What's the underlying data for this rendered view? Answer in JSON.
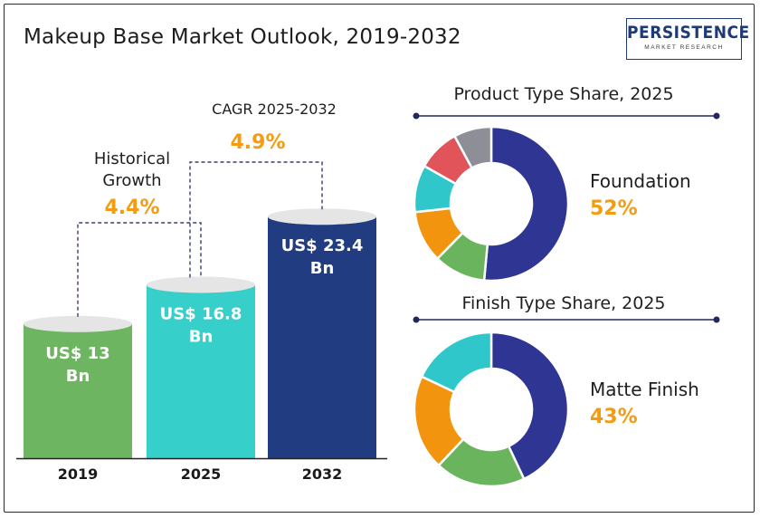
{
  "header": {
    "title": "Makeup Base Market Outlook, 2019-2032",
    "logo_text": "PERSISTENCE",
    "logo_subtext": "MARKET RESEARCH"
  },
  "colors": {
    "bar_2019": "#6db560",
    "bar_2025": "#36cfc9",
    "bar_2032": "#213c80",
    "accent_orange": "#f39c12",
    "donut_navy": "#2f3593",
    "donut_green": "#6bb45e",
    "donut_orange": "#f3940e",
    "donut_teal": "#2fc7c9",
    "donut_red": "#e0545a",
    "donut_gray": "#8e8e96"
  },
  "chart_data": [
    {
      "type": "bar",
      "categories": [
        "2019",
        "2025",
        "2032"
      ],
      "values": [
        13,
        16.8,
        23.4
      ],
      "data_labels": [
        "US$ 13 Bn",
        "US$ 16.8 Bn",
        "US$ 23.4 Bn"
      ],
      "title": "",
      "annotations": [
        {
          "label": "Historical Growth",
          "value": "4.4%"
        },
        {
          "label": "CAGR 2025-2032",
          "value": "4.9%"
        }
      ]
    },
    {
      "type": "pie",
      "title": "Product Type Share, 2025",
      "values": [
        52,
        11,
        11,
        10,
        9,
        8
      ],
      "highlight": {
        "name": "Foundation",
        "value": "52%"
      }
    },
    {
      "type": "pie",
      "title": "Finish Type Share, 2025",
      "values": [
        43,
        19,
        20,
        18
      ],
      "highlight": {
        "name": "Matte Finish",
        "value": "43%"
      }
    }
  ]
}
